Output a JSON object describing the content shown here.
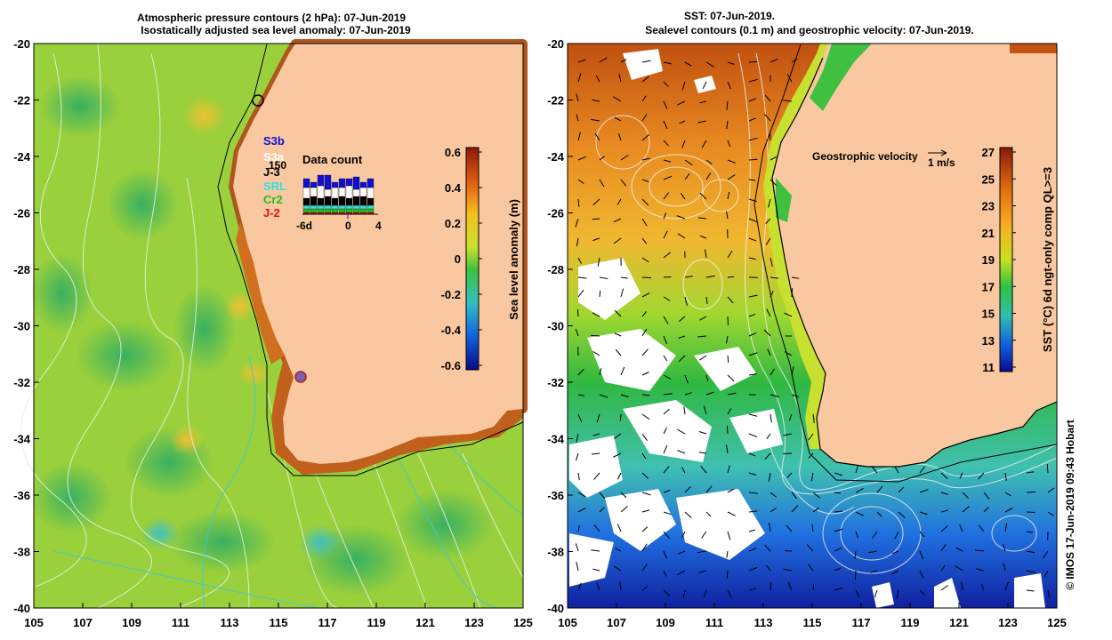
{
  "left_panel": {
    "title_line1": "Atmospheric pressure contours (2 hPa): 07-Jun-2019",
    "title_line2": "Isostatically adjusted sea level anomaly: 07-Jun-2019",
    "x_ticks": [
      "105",
      "107",
      "109",
      "111",
      "113",
      "115",
      "117",
      "119",
      "121",
      "123",
      "125"
    ],
    "y_ticks": [
      "-20",
      "-22",
      "-24",
      "-26",
      "-28",
      "-30",
      "-32",
      "-34",
      "-36",
      "-38",
      "-40"
    ],
    "colorbar": {
      "label": "Sea level anomaly (m)",
      "ticks": [
        "0.6",
        "0.4",
        "0.2",
        "0",
        "-0.2",
        "-0.4",
        "-0.6"
      ]
    },
    "data_count": {
      "title": "Data count",
      "y_tick": "150",
      "x_ticks": [
        "-6d",
        "0",
        "4"
      ]
    },
    "missions": [
      {
        "name": "S3b",
        "color": "#1010d0"
      },
      {
        "name": "S3a",
        "color": "#ffffff"
      },
      {
        "name": "J-3",
        "color": "#000000"
      },
      {
        "name": "SRL",
        "color": "#30e0e0"
      },
      {
        "name": "Cr2",
        "color": "#20c020"
      },
      {
        "name": "J-2",
        "color": "#e01010"
      }
    ]
  },
  "right_panel": {
    "title_line1": "SST: 07-Jun-2019.",
    "title_line2": "Sealevel contours (0.1 m) and geostrophic velocity: 07-Jun-2019.",
    "x_ticks": [
      "105",
      "107",
      "109",
      "111",
      "113",
      "115",
      "117",
      "119",
      "121",
      "123",
      "125"
    ],
    "y_ticks": [
      "-20",
      "-22",
      "-24",
      "-26",
      "-28",
      "-30",
      "-32",
      "-34",
      "-36",
      "-38",
      "-40"
    ],
    "velocity_label": "Geostrophic velocity",
    "velocity_scale": "1 m/s",
    "colorbar": {
      "label": "SST (°C) 6d ngt-only comp QL>=3",
      "ticks": [
        "27",
        "25",
        "23",
        "21",
        "19",
        "17",
        "15",
        "13",
        "11"
      ]
    },
    "credit": "© IMOS 17-Jun-2019 09:43 Hobart"
  },
  "colors": {
    "land": "#f9c8a0",
    "sea_green": "#9ad03c",
    "coast_brown": "#b0561c"
  }
}
